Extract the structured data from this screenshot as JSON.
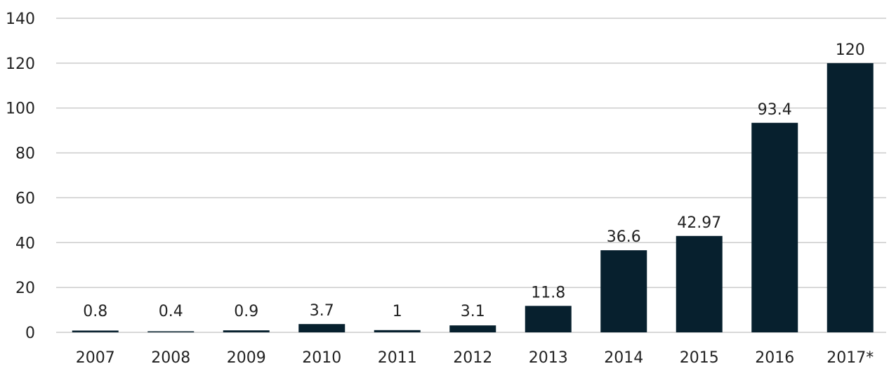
{
  "chart_data": {
    "type": "bar",
    "title": "",
    "xlabel": "",
    "ylabel": "",
    "categories": [
      "2007",
      "2008",
      "2009",
      "2010",
      "2011",
      "2012",
      "2013",
      "2014",
      "2015",
      "2016",
      "2017*"
    ],
    "values": [
      0.8,
      0.4,
      0.9,
      3.7,
      1,
      3.1,
      11.8,
      36.6,
      42.97,
      93.4,
      120
    ],
    "value_labels": [
      "0.8",
      "0.4",
      "0.9",
      "3.7",
      "1",
      "3.1",
      "11.8",
      "36.6",
      "42.97",
      "93.4",
      "120"
    ],
    "ylim": [
      0,
      140
    ],
    "yticks": [
      0,
      20,
      40,
      60,
      80,
      100,
      120,
      140
    ],
    "ytick_labels": [
      "0",
      "20",
      "40",
      "60",
      "80",
      "100",
      "120",
      "140"
    ],
    "grid": true,
    "legend": "none",
    "colors": {
      "bar": "#07202e",
      "grid": "#cccccc",
      "text": "#222222"
    }
  }
}
